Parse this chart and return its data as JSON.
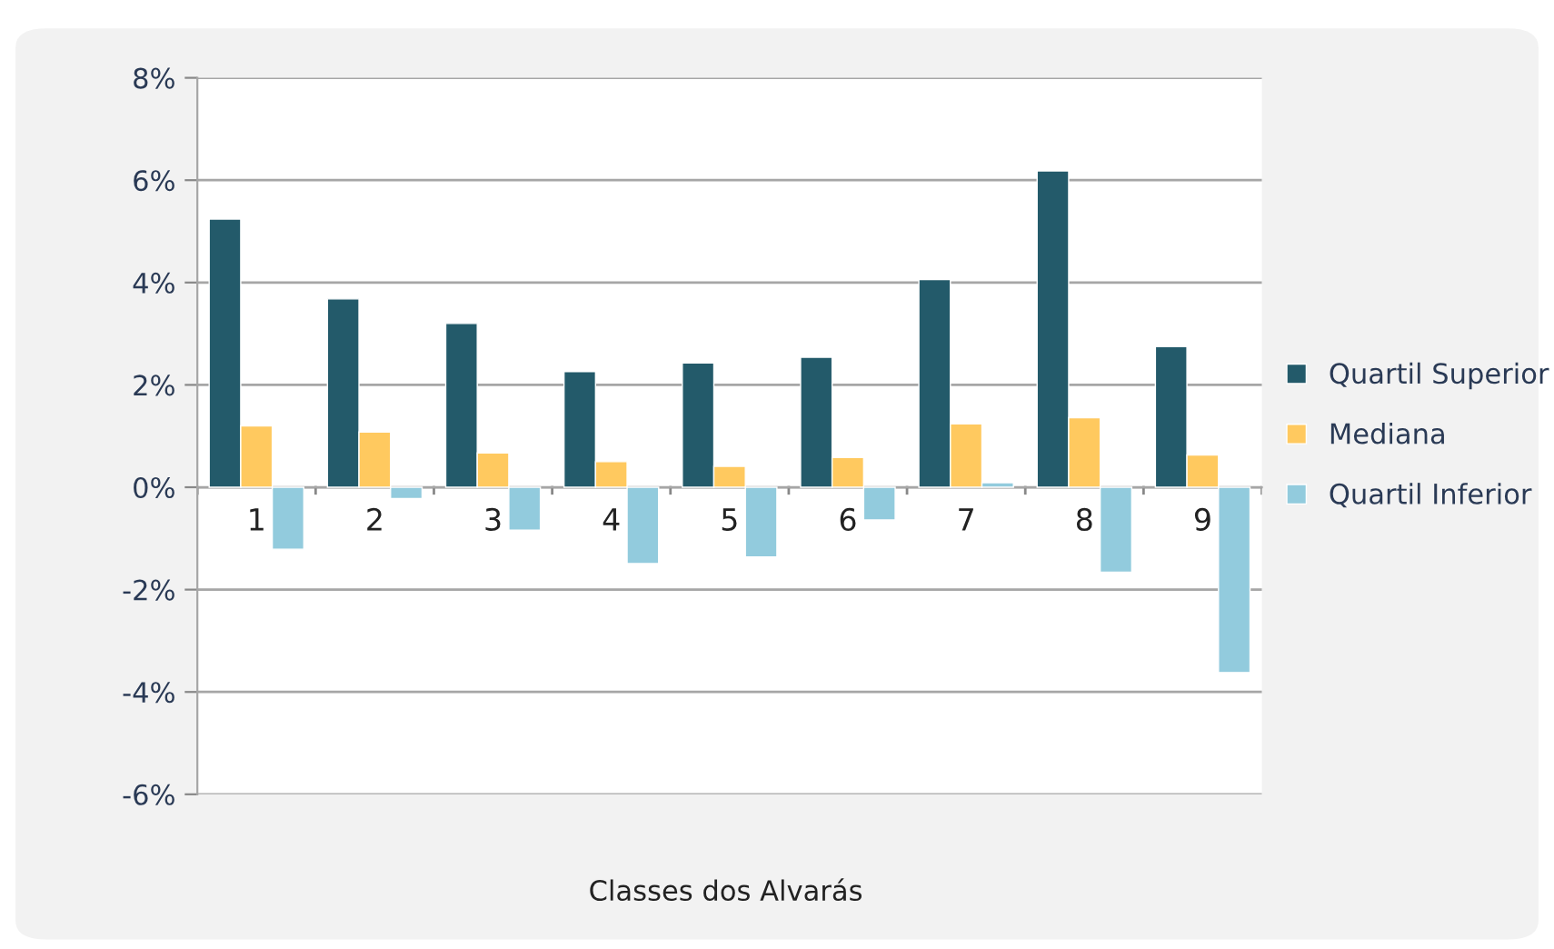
{
  "chart_data": {
    "type": "bar",
    "xlabel": "Classes dos Alvarás",
    "categories": [
      "1",
      "2",
      "3",
      "4",
      "5",
      "6",
      "7",
      "8",
      "9"
    ],
    "series": [
      {
        "name": "Quartil Superior",
        "color": "#235a6a",
        "values": [
          5.24,
          3.68,
          3.2,
          2.26,
          2.43,
          2.54,
          4.06,
          6.18,
          2.75
        ]
      },
      {
        "name": "Mediana",
        "color": "#ffc95f",
        "values": [
          1.2,
          1.08,
          0.67,
          0.5,
          0.41,
          0.58,
          1.24,
          1.36,
          0.63
        ]
      },
      {
        "name": "Quartil Inferior",
        "color": "#92cbdd",
        "values": [
          -1.21,
          -0.22,
          -0.84,
          -1.49,
          -1.36,
          -0.64,
          0.09,
          -1.66,
          -3.62
        ]
      }
    ],
    "ylim": [
      -6,
      8
    ],
    "yticks": [
      {
        "value": -6,
        "label": "-6%"
      },
      {
        "value": -4,
        "label": "-4%"
      },
      {
        "value": -2,
        "label": "-2%"
      },
      {
        "value": 0,
        "label": "0%"
      },
      {
        "value": 2,
        "label": "2%"
      },
      {
        "value": 4,
        "label": "4%"
      },
      {
        "value": 6,
        "label": "6%"
      },
      {
        "value": 8,
        "label": "8%"
      }
    ],
    "grid": "y",
    "legend": "right"
  }
}
